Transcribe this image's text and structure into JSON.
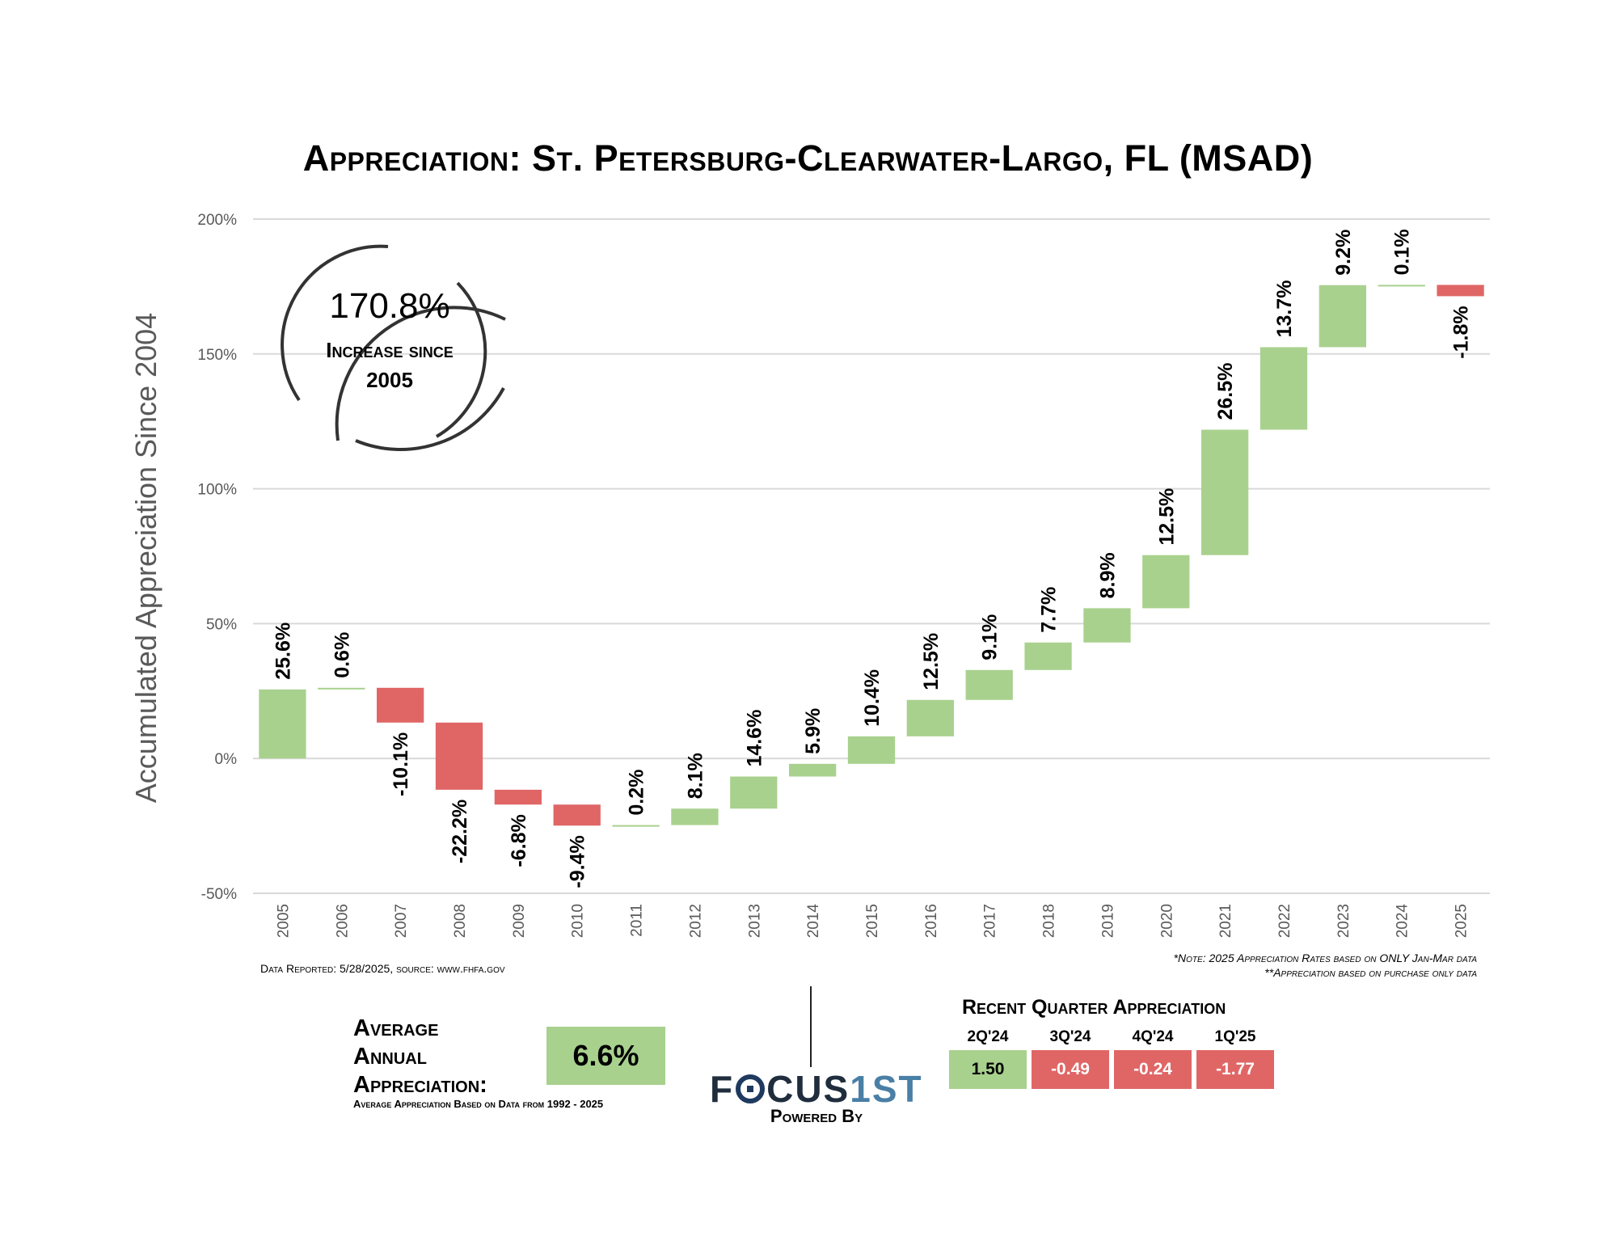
{
  "title": "Appreciation: St. Petersburg-Clearwater-Largo, FL (MSAD)",
  "callout": {
    "value": "170.8%",
    "line1": "Increase since",
    "line2": "2005"
  },
  "footnotes": {
    "left": "Data Reported: 5/28/2025, source: www.fhfa.gov",
    "right1": "*Note: 2025 Appreciation Rates based on ONLY Jan-Mar data",
    "right2": "**Appreciation based on purchase only data"
  },
  "average": {
    "line1": "Average",
    "line2": "Annual",
    "line3": "Appreciation:",
    "value": "6.6%",
    "sub": "Average Appreciation Based on Data from 1992 - 2025",
    "box_color": "#a9d18e"
  },
  "brand": {
    "name_part1": "F",
    "name_part2": "CUS",
    "name_part3": "1ST",
    "powered_by": "Powered By"
  },
  "recent_quarter": {
    "title": "Recent Quarter Appreciation",
    "items": [
      {
        "label": "2Q'24",
        "value": "1.50",
        "color": "#a9d18e",
        "text_color": "#000000"
      },
      {
        "label": "3Q'24",
        "value": "-0.49",
        "color": "#e06666",
        "text_color": "#ffffff"
      },
      {
        "label": "4Q'24",
        "value": "-0.24",
        "color": "#e06666",
        "text_color": "#ffffff"
      },
      {
        "label": "1Q'25",
        "value": "-1.77",
        "color": "#e06666",
        "text_color": "#ffffff"
      }
    ]
  },
  "colors": {
    "positive": "#a9d18e",
    "negative": "#e06666",
    "grid": "#d9d9d9",
    "axis_text": "#595959"
  },
  "chart_data": {
    "type": "bar",
    "subtype": "waterfall",
    "ylabel": "Accumulated Appreciation Since 2004",
    "ylim": [
      -50,
      200
    ],
    "yticks": [
      -50,
      0,
      50,
      100,
      150,
      200
    ],
    "ytick_labels": [
      "-50%",
      "0%",
      "50%",
      "100%",
      "150%",
      "200%"
    ],
    "grid": true,
    "categories": [
      "2005",
      "2006",
      "2007",
      "2008",
      "2009",
      "2010",
      "2011",
      "2012",
      "2013",
      "2014",
      "2015",
      "2016",
      "2017",
      "2018",
      "2019",
      "2020",
      "2021",
      "2022",
      "2023",
      "2024",
      "2025"
    ],
    "values": [
      25.6,
      0.6,
      -10.1,
      -22.2,
      -6.8,
      -9.4,
      0.2,
      8.1,
      14.6,
      5.9,
      10.4,
      12.5,
      9.1,
      7.7,
      8.9,
      12.5,
      26.5,
      13.7,
      9.2,
      0.1,
      -1.8
    ],
    "labels": [
      "25.6%",
      "0.6%",
      "-10.1%",
      "-22.2%",
      "-6.8%",
      "-9.4%",
      "0.2%",
      "8.1%",
      "14.6%",
      "5.9%",
      "10.4%",
      "12.5%",
      "9.1%",
      "7.7%",
      "8.9%",
      "12.5%",
      "26.5%",
      "13.7%",
      "9.2%",
      "0.1%",
      "-1.8%"
    ],
    "starts": [
      0,
      25.6,
      26.2,
      13.3,
      -11.6,
      -17.1,
      -24.9,
      -24.7,
      -18.6,
      -6.7,
      -2.0,
      8.2,
      21.7,
      32.8,
      43.0,
      55.7,
      75.4,
      121.9,
      152.5,
      175.5,
      175.6
    ],
    "ends": [
      25.6,
      26.2,
      13.3,
      -11.6,
      -17.1,
      -24.9,
      -24.7,
      -18.6,
      -6.7,
      -2.0,
      8.2,
      21.7,
      32.8,
      43.0,
      55.7,
      75.4,
      121.9,
      152.5,
      175.5,
      175.6,
      171.4
    ]
  }
}
